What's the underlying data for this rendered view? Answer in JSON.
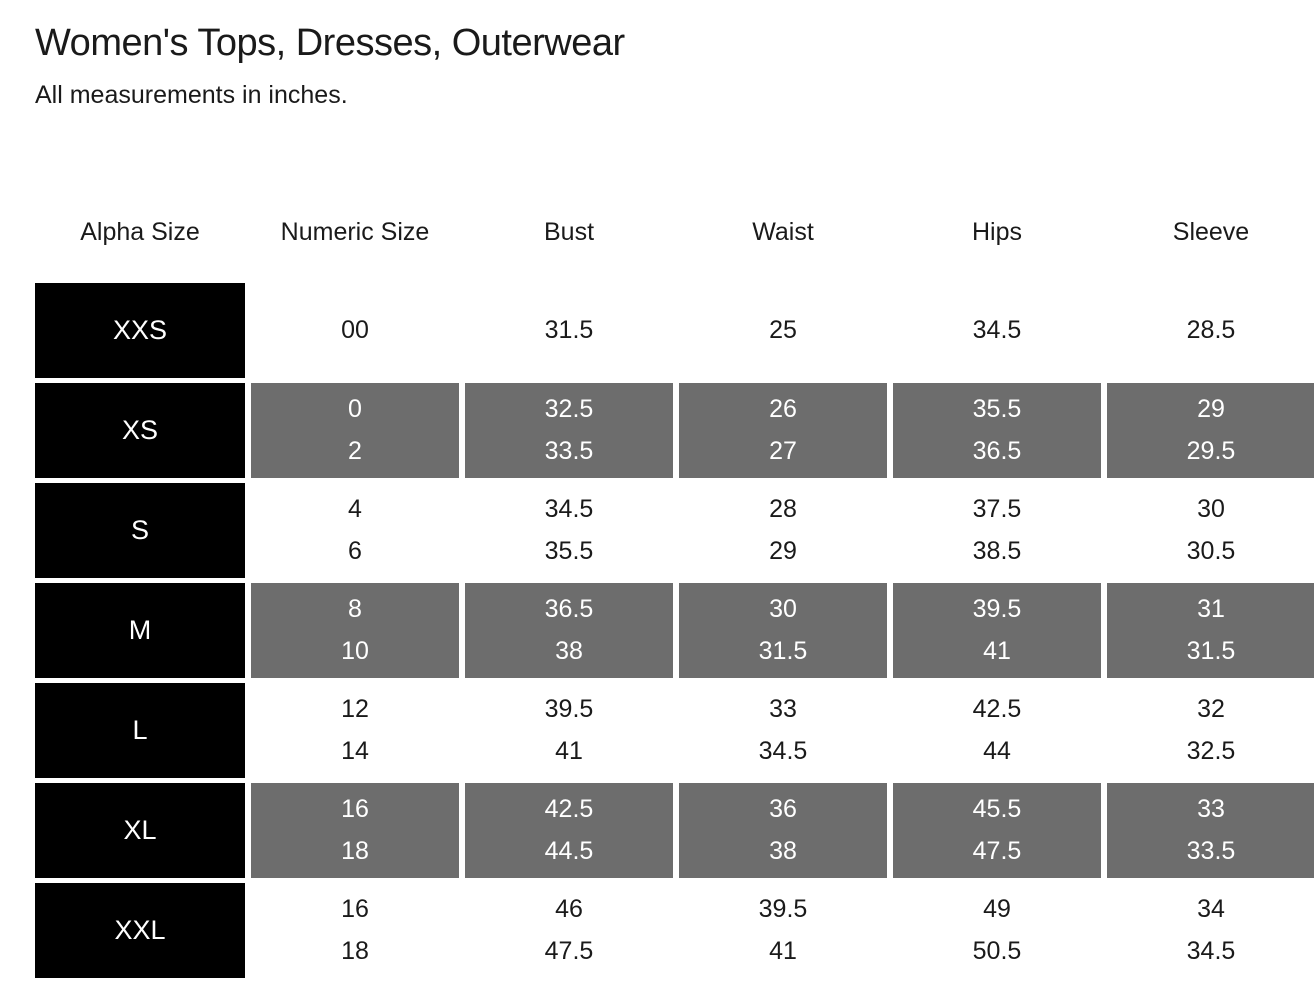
{
  "header": {
    "title": "Women's Tops, Dresses, Outerwear",
    "subtitle": "All measurements in inches."
  },
  "table": {
    "columns": [
      "Alpha Size",
      "Numeric Size",
      "Bust",
      "Waist",
      "Hips",
      "Sleeve"
    ],
    "measurement_keys": [
      "numeric",
      "bust",
      "waist",
      "hips",
      "sleeve"
    ],
    "colors": {
      "alpha_cell_bg": "#000000",
      "alpha_cell_text": "#ffffff",
      "shaded_cell_bg": "#6d6d6d",
      "shaded_cell_text": "#ffffff",
      "text": "#1a1a1a",
      "background": "#ffffff"
    },
    "rows": [
      {
        "alpha": "XXS",
        "shaded": false,
        "numeric": [
          "00"
        ],
        "bust": [
          "31.5"
        ],
        "waist": [
          "25"
        ],
        "hips": [
          "34.5"
        ],
        "sleeve": [
          "28.5"
        ]
      },
      {
        "alpha": "XS",
        "shaded": true,
        "numeric": [
          "0",
          "2"
        ],
        "bust": [
          "32.5",
          "33.5"
        ],
        "waist": [
          "26",
          "27"
        ],
        "hips": [
          "35.5",
          "36.5"
        ],
        "sleeve": [
          "29",
          "29.5"
        ]
      },
      {
        "alpha": "S",
        "shaded": false,
        "numeric": [
          "4",
          "6"
        ],
        "bust": [
          "34.5",
          "35.5"
        ],
        "waist": [
          "28",
          "29"
        ],
        "hips": [
          "37.5",
          "38.5"
        ],
        "sleeve": [
          "30",
          "30.5"
        ]
      },
      {
        "alpha": "M",
        "shaded": true,
        "numeric": [
          "8",
          "10"
        ],
        "bust": [
          "36.5",
          "38"
        ],
        "waist": [
          "30",
          "31.5"
        ],
        "hips": [
          "39.5",
          "41"
        ],
        "sleeve": [
          "31",
          "31.5"
        ]
      },
      {
        "alpha": "L",
        "shaded": false,
        "numeric": [
          "12",
          "14"
        ],
        "bust": [
          "39.5",
          "41"
        ],
        "waist": [
          "33",
          "34.5"
        ],
        "hips": [
          "42.5",
          "44"
        ],
        "sleeve": [
          "32",
          "32.5"
        ]
      },
      {
        "alpha": "XL",
        "shaded": true,
        "numeric": [
          "16",
          "18"
        ],
        "bust": [
          "42.5",
          "44.5"
        ],
        "waist": [
          "36",
          "38"
        ],
        "hips": [
          "45.5",
          "47.5"
        ],
        "sleeve": [
          "33",
          "33.5"
        ]
      },
      {
        "alpha": "XXL",
        "shaded": false,
        "numeric": [
          "16",
          "18"
        ],
        "bust": [
          "46",
          "47.5"
        ],
        "waist": [
          "39.5",
          "41"
        ],
        "hips": [
          "49",
          "50.5"
        ],
        "sleeve": [
          "34",
          "34.5"
        ]
      }
    ]
  }
}
